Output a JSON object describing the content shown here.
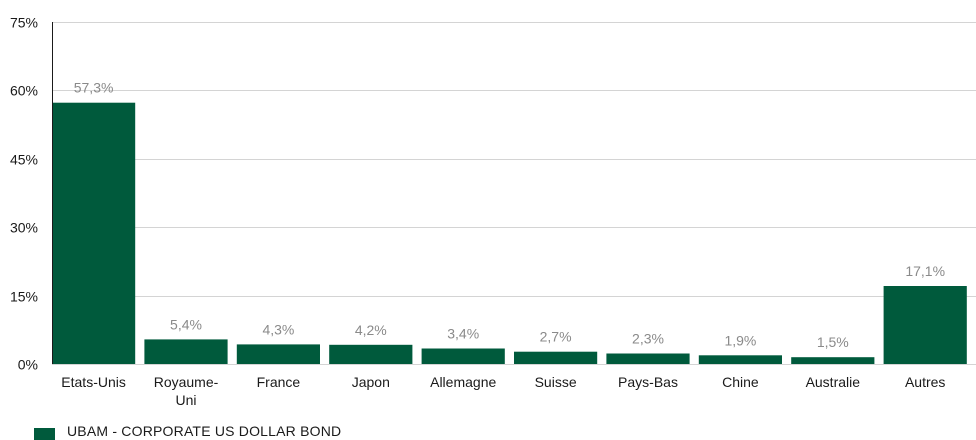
{
  "chart_data": {
    "type": "bar",
    "categories": [
      "Etats-Unis",
      "Royaume-Uni",
      "France",
      "Japon",
      "Allemagne",
      "Suisse",
      "Pays-Bas",
      "Chine",
      "Australie",
      "Autres"
    ],
    "category_lines": [
      [
        "Etats-Unis"
      ],
      [
        "Royaume-",
        "Uni"
      ],
      [
        "France"
      ],
      [
        "Japon"
      ],
      [
        "Allemagne"
      ],
      [
        "Suisse"
      ],
      [
        "Pays-Bas"
      ],
      [
        "Chine"
      ],
      [
        "Australie"
      ],
      [
        "Autres"
      ]
    ],
    "series": [
      {
        "name": "UBAM - CORPORATE US DOLLAR BOND",
        "values": [
          57.3,
          5.4,
          4.3,
          4.2,
          3.4,
          2.7,
          2.3,
          1.9,
          1.5,
          17.1
        ],
        "labels": [
          "57,3%",
          "5,4%",
          "4,3%",
          "4,2%",
          "3,4%",
          "2,7%",
          "2,3%",
          "1,9%",
          "1,5%",
          "17,1%"
        ]
      }
    ],
    "y_ticks": [
      0,
      15,
      30,
      45,
      60,
      75
    ],
    "y_tick_labels": [
      "0%",
      "15%",
      "30%",
      "45%",
      "60%",
      "75%"
    ],
    "ylim": [
      0,
      75
    ],
    "grid": true,
    "legend_position": "bottom-left",
    "colors": {
      "bar": "#005A3C",
      "grid": "#d4d4d4",
      "axis": "#1a1a1a",
      "data_label": "#8a8a8a"
    }
  },
  "legend": {
    "label": "UBAM - CORPORATE US DOLLAR BOND"
  }
}
